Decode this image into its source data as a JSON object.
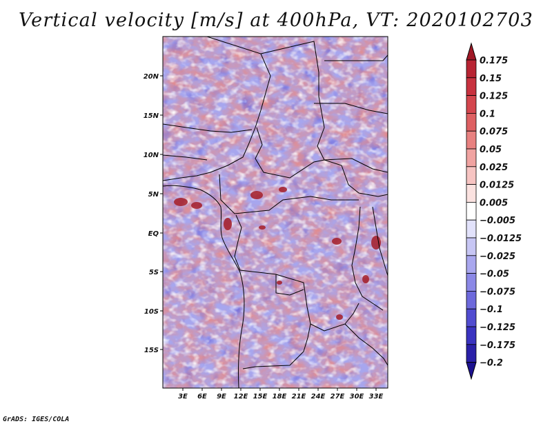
{
  "title": "Vertical velocity [m/s] at 400hPa, VT: 2020102703",
  "credit": "GrADS: IGES/COLA",
  "map": {
    "lon_range": [
      0,
      35
    ],
    "lat_range": [
      -20,
      25
    ],
    "x_ticks": [
      "3E",
      "6E",
      "9E",
      "12E",
      "15E",
      "18E",
      "21E",
      "24E",
      "27E",
      "30E",
      "33E"
    ],
    "y_ticks": [
      "20N",
      "15N",
      "10N",
      "5N",
      "EQ",
      "5S",
      "10S",
      "15S"
    ]
  },
  "colorbar": {
    "labels": [
      "0.175",
      "0.15",
      "0.125",
      "0.1",
      "0.075",
      "0.05",
      "0.025",
      "0.0125",
      "0.005",
      "-0.005",
      "-0.0125",
      "-0.025",
      "-0.05",
      "-0.075",
      "-0.1",
      "-0.125",
      "-0.175",
      "-0.2"
    ],
    "colors": [
      "#a01826",
      "#b82433",
      "#c8323f",
      "#d4464e",
      "#de6062",
      "#e88180",
      "#f0a3a1",
      "#f7c4c2",
      "#fbe2e0",
      "#ffffff",
      "#e2e2fb",
      "#c7c6f4",
      "#a9a7ee",
      "#8b88e6",
      "#6d69dc",
      "#514cd0",
      "#3a33c0",
      "#2a20a8",
      "#1c1290"
    ]
  }
}
